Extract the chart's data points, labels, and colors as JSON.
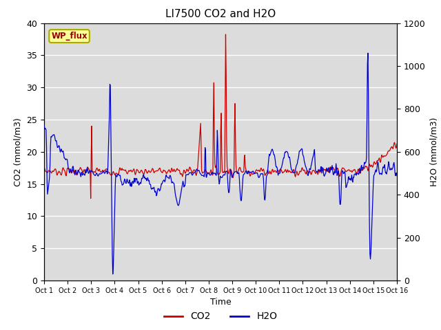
{
  "title": "LI7500 CO2 and H2O",
  "xlabel": "Time",
  "ylabel_left": "CO2 (mmol/m3)",
  "ylabel_right": "H2O (mmol/m3)",
  "x_tick_labels": [
    "Oct 1",
    "Oct 2",
    "Oct 3",
    "Oct 4",
    "Oct 5",
    "Oct 6",
    "Oct 7",
    "Oct 8",
    "Oct 9",
    "Oct 10",
    "Oct 11",
    "Oct 12",
    "Oct 13",
    "Oct 14",
    "Oct 15",
    "Oct 16"
  ],
  "ylim_left": [
    0,
    40
  ],
  "ylim_right": [
    0,
    1200
  ],
  "co2_color": "#cc0000",
  "h2o_color": "#0000cc",
  "background_color": "#dcdcdc",
  "legend_label_co2": "CO2",
  "legend_label_h2o": "H2O",
  "annotation_text": "WP_flux",
  "annotation_bbox_facecolor": "#ffff99",
  "annotation_bbox_edgecolor": "#aaaa00",
  "grid_color": "#ffffff",
  "yticks_left": [
    0,
    5,
    10,
    15,
    20,
    25,
    30,
    35,
    40
  ],
  "yticks_right": [
    0,
    200,
    400,
    600,
    800,
    1000,
    1200
  ],
  "n_days": 15,
  "pts_per_day": 48
}
